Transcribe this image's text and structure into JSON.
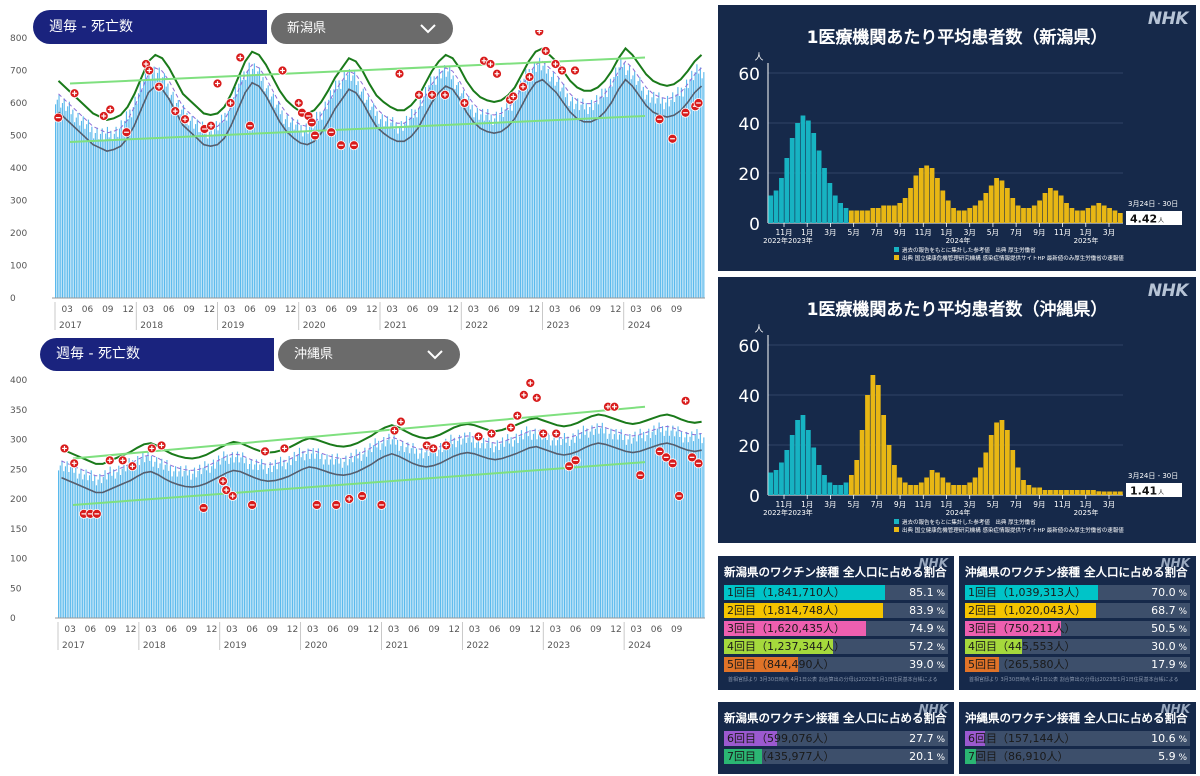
{
  "mortality": [
    {
      "id": "niigata",
      "header_label": "週毎 - 死亡数",
      "prefecture": "新潟県",
      "y_ticks": [
        "800",
        "700",
        "600",
        "500",
        "400",
        "300",
        "200",
        "100",
        "0"
      ],
      "month_ticks": [
        "03",
        "06",
        "09",
        "12",
        "03",
        "06",
        "09",
        "12",
        "03",
        "06",
        "09",
        "12",
        "03",
        "06",
        "09",
        "12",
        "03",
        "06",
        "09",
        "12",
        "03",
        "06",
        "09",
        "12",
        "03",
        "06",
        "09",
        "12",
        "03",
        "06",
        "09"
      ],
      "year_labels": [
        "2017",
        "2018",
        "2019",
        "2020",
        "2021",
        "2022",
        "2023",
        "2024"
      ]
    },
    {
      "id": "okinawa",
      "header_label": "週毎 - 死亡数",
      "prefecture": "沖縄県",
      "y_ticks": [
        "400",
        "350",
        "300",
        "250",
        "200",
        "150",
        "100",
        "50",
        "0"
      ],
      "month_ticks": [
        "03",
        "06",
        "09",
        "12",
        "03",
        "06",
        "09",
        "12",
        "03",
        "06",
        "09",
        "12",
        "03",
        "06",
        "09",
        "12",
        "03",
        "06",
        "09",
        "12",
        "03",
        "06",
        "09",
        "12",
        "03",
        "06",
        "09",
        "12",
        "03",
        "06",
        "09"
      ],
      "year_labels": [
        "2017",
        "2018",
        "2019",
        "2020",
        "2021",
        "2022",
        "2023",
        "2024"
      ]
    }
  ],
  "chart_data": [
    {
      "type": "bar",
      "title": "週毎 - 死亡数",
      "subtitle": "新潟県",
      "ylim": [
        0,
        800
      ],
      "x_range": [
        "2017-01",
        "2024-12"
      ],
      "series_note": "weekly deaths (bars) with upper/lower bands; approximate",
      "values_approx": [
        620,
        600,
        580,
        560,
        540,
        520,
        510,
        500,
        505,
        515,
        540,
        580,
        630,
        680,
        700,
        690,
        660,
        620,
        580,
        560,
        540,
        520,
        515,
        520,
        540,
        580,
        630,
        680,
        710,
        700,
        670,
        630,
        590,
        560,
        540,
        525,
        520,
        530,
        555,
        590,
        630,
        660,
        690,
        680,
        650,
        610,
        575,
        555,
        540,
        530,
        530,
        545,
        570,
        610,
        650,
        680,
        700,
        690,
        660,
        620,
        590,
        570,
        560,
        555,
        560,
        575,
        600,
        640,
        680,
        710,
        720,
        700,
        680,
        650,
        620,
        600,
        590,
        590,
        600,
        620,
        650,
        690,
        720,
        700,
        670,
        640,
        620,
        610,
        605,
        610,
        625,
        650,
        680,
        700
      ]
    },
    {
      "type": "bar",
      "title": "週毎 - 死亡数",
      "subtitle": "沖縄県",
      "ylim": [
        0,
        400
      ],
      "x_range": [
        "2017-01",
        "2024-12"
      ],
      "series_note": "weekly deaths (bars) with upper/lower bands; approximate",
      "values_approx": [
        260,
        255,
        250,
        245,
        240,
        235,
        235,
        240,
        245,
        250,
        255,
        262,
        268,
        270,
        265,
        258,
        252,
        248,
        245,
        244,
        246,
        250,
        256,
        262,
        268,
        272,
        270,
        265,
        260,
        256,
        254,
        255,
        258,
        262,
        268,
        274,
        278,
        276,
        272,
        268,
        265,
        264,
        266,
        270,
        276,
        282,
        290,
        296,
        300,
        296,
        290,
        284,
        280,
        278,
        280,
        284,
        290,
        296,
        300,
        302,
        300,
        296,
        292,
        290,
        292,
        296,
        300,
        305,
        310,
        312,
        308,
        304,
        300,
        298,
        300,
        304,
        310,
        315,
        318,
        316,
        312,
        308,
        304,
        302,
        304,
        308,
        312,
        316,
        318,
        315,
        310,
        306,
        304,
        306
      ]
    },
    {
      "type": "bar",
      "title": "1医療機関あたり平均患者数（新潟県）",
      "ylabel": "人",
      "ylim": [
        0,
        60
      ],
      "x_ticks": [
        "11月",
        "1月",
        "3月",
        "5月",
        "7月",
        "9月",
        "11月",
        "1月",
        "3月",
        "5月",
        "7月",
        "9月",
        "11月",
        "1月",
        "3月"
      ],
      "year_labels": [
        "2022年2023年",
        "2024年",
        "2025年"
      ],
      "latest_period": "3月24日 - 30日",
      "latest_value": "4.42",
      "latest_unit": "人",
      "legend": [
        "過去の報告をもとに集計した参考値　出典 厚生労働省",
        "出典 国立健康危機管理研究機構 感染症情報提供サイトHP 最新値のみ厚生労働省の速報値"
      ],
      "values_approx": [
        11,
        13,
        18,
        26,
        34,
        40,
        43,
        41,
        36,
        29,
        22,
        16,
        11,
        8,
        6,
        5,
        5,
        5,
        5,
        6,
        6,
        7,
        7,
        7,
        8,
        10,
        14,
        19,
        22,
        23,
        22,
        18,
        13,
        9,
        6,
        5,
        5,
        6,
        7,
        9,
        12,
        15,
        18,
        17,
        14,
        10,
        7,
        6,
        6,
        7,
        9,
        12,
        14,
        13,
        11,
        8,
        6,
        5,
        5,
        6,
        7,
        8,
        7,
        6,
        5,
        4
      ]
    },
    {
      "type": "bar",
      "title": "1医療機関あたり平均患者数（沖縄県）",
      "ylabel": "人",
      "ylim": [
        0,
        60
      ],
      "x_ticks": [
        "11月",
        "1月",
        "3月",
        "5月",
        "7月",
        "9月",
        "11月",
        "1月",
        "3月",
        "5月",
        "7月",
        "9月",
        "11月",
        "1月",
        "3月"
      ],
      "year_labels": [
        "2022年2023年",
        "2024年",
        "2025年"
      ],
      "latest_period": "3月24日 - 30日",
      "latest_value": "1.41",
      "latest_unit": "人",
      "legend": [
        "過去の報告をもとに集計した参考値　出典 厚生労働省",
        "出典 国立健康危機管理研究機構 感染症情報提供サイトHP 最新値のみ厚生労働省の速報値"
      ],
      "values_approx": [
        9,
        10,
        13,
        18,
        24,
        30,
        32,
        26,
        19,
        12,
        8,
        5,
        4,
        4,
        5,
        8,
        14,
        26,
        40,
        48,
        44,
        32,
        20,
        12,
        7,
        5,
        4,
        4,
        5,
        7,
        10,
        9,
        7,
        5,
        4,
        4,
        4,
        5,
        7,
        11,
        17,
        24,
        29,
        30,
        26,
        18,
        11,
        6,
        4,
        3,
        3,
        2,
        2,
        2,
        2,
        2,
        2,
        2,
        2,
        2,
        2,
        1.5,
        1.4,
        1.4,
        1.4,
        1.41
      ]
    }
  ],
  "weekly_panels": [
    {
      "title": "1医療機関あたり平均患者数（新潟県）",
      "logo": "NHK",
      "y_unit": "人",
      "y_ticks": [
        "60",
        "40",
        "20",
        "0"
      ],
      "x_ticks": [
        "11月",
        "1月",
        "3月",
        "5月",
        "7月",
        "9月",
        "11月",
        "1月",
        "3月",
        "5月",
        "7月",
        "9月",
        "11月",
        "1月",
        "3月"
      ],
      "year_labels": [
        "2022年2023年",
        "2024年",
        "2025年"
      ],
      "latest_period": "3月24日 - 30日",
      "latest_value": "4.42",
      "latest_unit": "人",
      "legend_teal": "過去の報告をもとに集計した参考値　出典 厚生労働省",
      "legend_gold": "出典 国立健康危機管理研究機構 感染症情報提供サイトHP 最新値のみ厚生労働省の速報値"
    },
    {
      "title": "1医療機関あたり平均患者数（沖縄県）",
      "logo": "NHK",
      "y_unit": "人",
      "y_ticks": [
        "60",
        "40",
        "20",
        "0"
      ],
      "x_ticks": [
        "11月",
        "1月",
        "3月",
        "5月",
        "7月",
        "9月",
        "11月",
        "1月",
        "3月",
        "5月",
        "7月",
        "9月",
        "11月",
        "1月",
        "3月"
      ],
      "year_labels": [
        "2022年2023年",
        "2024年",
        "2025年"
      ],
      "latest_period": "3月24日 - 30日",
      "latest_value": "1.41",
      "latest_unit": "人",
      "legend_teal": "過去の報告をもとに集計した参考値　出典 厚生労働省",
      "legend_gold": "出典 国立健康危機管理研究機構 感染症情報提供サイトHP 最新値のみ厚生労働省の速報値"
    }
  ],
  "vaccine_tables": [
    {
      "title": "新潟県のワクチン接種 全人口に占める割合",
      "logo": "NHK",
      "rows": [
        {
          "label": "1回目（1,841,710人）",
          "pct": "85.1",
          "fraction": 0.851,
          "color": "#00c4c8"
        },
        {
          "label": "2回目（1,814,748人）",
          "pct": "83.9",
          "fraction": 0.839,
          "color": "#f5c400"
        },
        {
          "label": "3回目（1,620,435人）",
          "pct": "74.9",
          "fraction": 0.749,
          "color": "#ee5fb0"
        },
        {
          "label": "4回目（1,237,344人）",
          "pct": "57.2",
          "fraction": 0.572,
          "color": "#a5d93c"
        },
        {
          "label": "5回目（844,490人）",
          "pct": "39.0",
          "fraction": 0.39,
          "color": "#e07328"
        }
      ],
      "footnote": "首相官邸より 3月30日時点 4月1日公表 割合算出の分母は2023年1月1日住民基本台帳による"
    },
    {
      "title": "沖縄県のワクチン接種 全人口に占める割合",
      "logo": "NHK",
      "rows": [
        {
          "label": "1回目（1,039,313人）",
          "pct": "70.0",
          "fraction": 0.7,
          "color": "#00c4c8"
        },
        {
          "label": "2回目（1,020,043人）",
          "pct": "68.7",
          "fraction": 0.687,
          "color": "#f5c400"
        },
        {
          "label": "3回目（750,211人）",
          "pct": "50.5",
          "fraction": 0.505,
          "color": "#ee5fb0"
        },
        {
          "label": "4回目（445,553人）",
          "pct": "30.0",
          "fraction": 0.3,
          "color": "#a5d93c"
        },
        {
          "label": "5回目（265,580人）",
          "pct": "17.9",
          "fraction": 0.179,
          "color": "#e07328"
        }
      ],
      "footnote": "首相官邸より 3月30日時点 4月1日公表 割合算出の分母は2023年1月1日住民基本台帳による"
    },
    {
      "title": "新潟県のワクチン接種 全人口に占める割合",
      "logo": "NHK",
      "rows": [
        {
          "label": "6回目（599,076人）",
          "pct": "27.7",
          "fraction": 0.277,
          "color": "#9b59d0"
        },
        {
          "label": "7回目（435,977人）",
          "pct": "20.1",
          "fraction": 0.201,
          "color": "#2bb673"
        }
      ]
    },
    {
      "title": "沖縄県のワクチン接種 全人口に占める割合",
      "logo": "NHK",
      "rows": [
        {
          "label": "6回目（157,144人）",
          "pct": "10.6",
          "fraction": 0.106,
          "color": "#9b59d0"
        },
        {
          "label": "7回目（86,910人）",
          "pct": "5.9",
          "fraction": 0.059,
          "color": "#2bb673"
        }
      ]
    }
  ],
  "pct_suffix": "%",
  "colors": {
    "header_bg": "#1a237e",
    "select_bg": "#6b6b6b",
    "bars_light": "#5ab9ec",
    "panel_bg": "#16294a",
    "teal": "#17b3c2",
    "gold": "#e8b714",
    "upper_band": "#1a7a1a",
    "trend_line": "#7fe07f"
  }
}
